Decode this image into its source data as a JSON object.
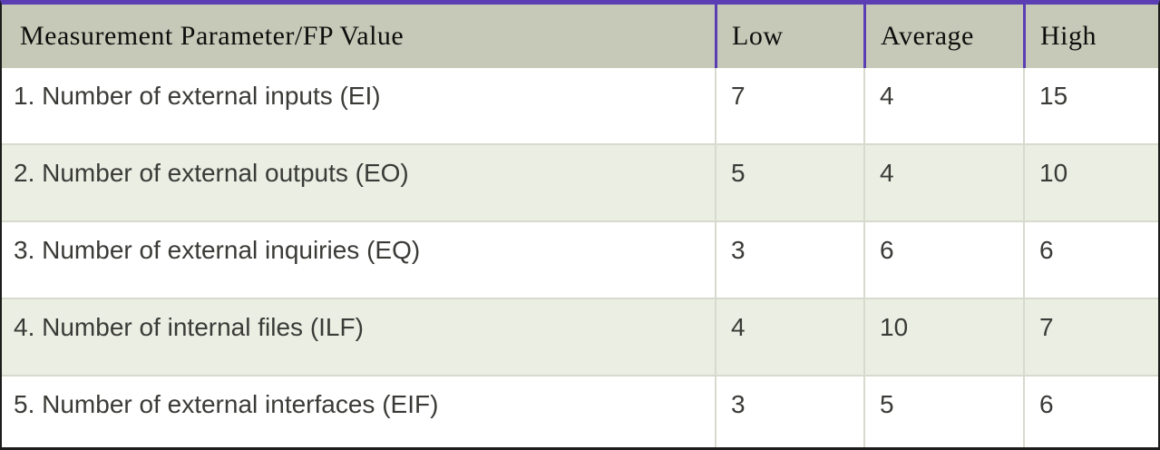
{
  "table": {
    "title_semantic": "Function point measurement parameter weighting table",
    "columns": [
      {
        "label": "Measurement Parameter/FP Value"
      },
      {
        "label": "Low"
      },
      {
        "label": "Average"
      },
      {
        "label": "High"
      }
    ],
    "rows": [
      {
        "parameter": "1. Number of external inputs (EI)",
        "low": "7",
        "average": "4",
        "high": "15"
      },
      {
        "parameter": "2. Number of external outputs (EO)",
        "low": "5",
        "average": "4",
        "high": "10"
      },
      {
        "parameter": "3. Number of external inquiries (EQ)",
        "low": "3",
        "average": "6",
        "high": "6"
      },
      {
        "parameter": "4. Number of internal files (ILF)",
        "low": "4",
        "average": "10",
        "high": "7"
      },
      {
        "parameter": "5. Number of external interfaces (EIF)",
        "low": "3",
        "average": "5",
        "high": "6"
      }
    ],
    "colors": {
      "accent_purple": "#5b3db4",
      "header_bg": "#c6c9b8",
      "row_alt_bg": "#ebeee3",
      "row_bg": "#ffffff",
      "outer_border": "#1c1c1a",
      "grid_line": "#d7dacd",
      "header_text": "#0e0e0c",
      "body_text": "#3a3a37"
    }
  }
}
